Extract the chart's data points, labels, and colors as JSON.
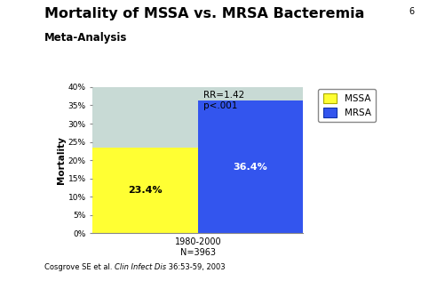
{
  "title": "Mortality of MSSA vs. MRSA Bacteremia",
  "subtitle": "Meta-Analysis",
  "ylabel": "Mortality",
  "xlabel_group": "1980-2000\nN=3963",
  "annotation": "RR=1.42\np<.001",
  "page_number": "6",
  "values": [
    23.4,
    36.4
  ],
  "bar_colors": [
    "#FFFF33",
    "#3355EE"
  ],
  "bar_labels": [
    "23.4%",
    "36.4%"
  ],
  "bar_label_colors": [
    "#000000",
    "#FFFFFF"
  ],
  "legend_labels": [
    "MSSA",
    "MRSA"
  ],
  "legend_colors": [
    "#FFFF33",
    "#3355EE"
  ],
  "ylim": [
    0,
    40
  ],
  "yticks": [
    0,
    5,
    10,
    15,
    20,
    25,
    30,
    35,
    40
  ],
  "ytick_labels": [
    "0%",
    "5%",
    "10%",
    "15%",
    "20%",
    "25%",
    "30%",
    "35%",
    "40%"
  ],
  "chart_bg": "#C8DAD5",
  "slide_bg": "#FFFFFF",
  "purple_strip_color": "#4B2E8A",
  "teal_strip_color": "#7AADA0",
  "title_color": "#000000",
  "title_fontsize": 11.5,
  "subtitle_fontsize": 8.5,
  "bar_width": 0.38,
  "bar_label_fontsize": 8,
  "axis_label_fontsize": 7.5,
  "tick_fontsize": 6.5,
  "citation_fontsize": 6,
  "annotation_fontsize": 7.5
}
